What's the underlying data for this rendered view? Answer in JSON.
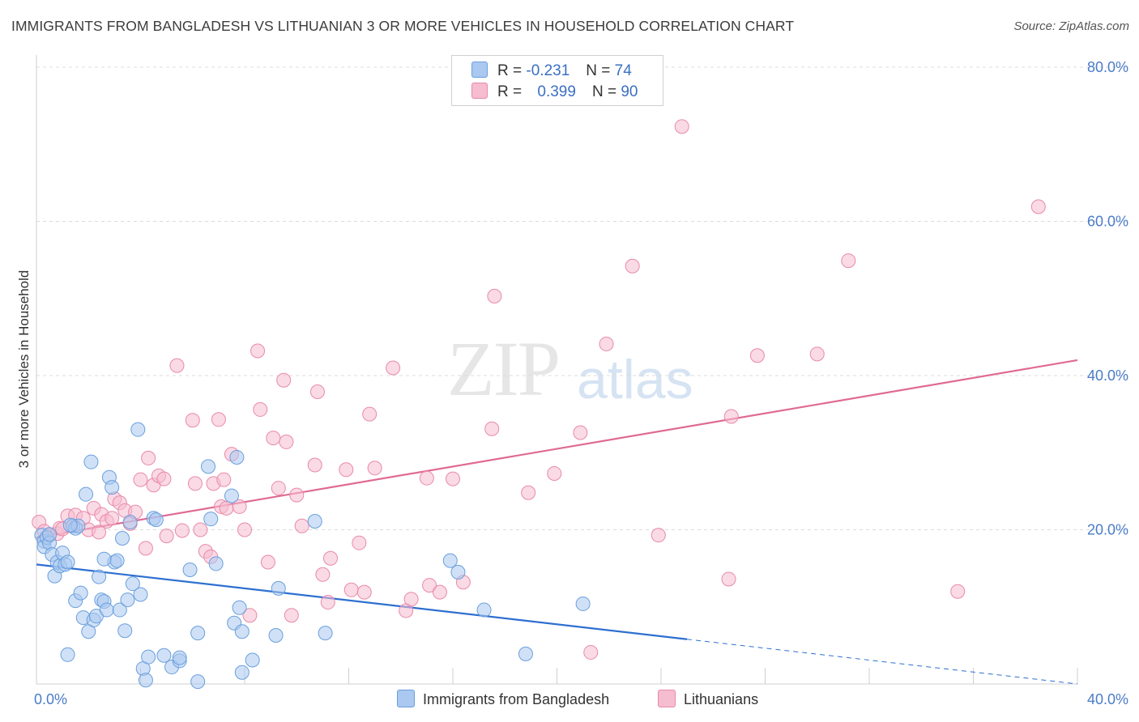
{
  "header": {
    "title": "IMMIGRANTS FROM BANGLADESH VS LITHUANIAN 3 OR MORE VEHICLES IN HOUSEHOLD CORRELATION CHART",
    "source": "Source: ZipAtlas.com"
  },
  "watermark": {
    "zip": "ZIP",
    "atlas": "atlas"
  },
  "legend": {
    "rows": [
      {
        "r_label": "R =",
        "r_value": "-0.231",
        "n_label": "N =",
        "n_value": "74"
      },
      {
        "r_label": "R =",
        "r_value": "0.399",
        "n_label": "N =",
        "n_value": "90"
      }
    ]
  },
  "bottom_legend": {
    "series1": "Immigrants from Bangladesh",
    "series2": "Lithuanians"
  },
  "colors": {
    "blue_fill": "#aac8f0",
    "blue_stroke": "#6a9fdc",
    "blue_line": "#2e6fd0",
    "pink_fill": "#f6bcd0",
    "pink_stroke": "#e88aaa",
    "pink_line": "#e06a94",
    "tick_label": "#4a7cc9"
  },
  "chart_data": {
    "type": "scatter",
    "title": "IMMIGRANTS FROM BANGLADESH VS LITHUANIAN 3 OR MORE VEHICLES IN HOUSEHOLD CORRELATION CHART",
    "xlabel": "",
    "ylabel": "3 or more Vehicles in Household",
    "xlim": [
      0,
      40
    ],
    "ylim": [
      0,
      80
    ],
    "x_tick_labels": [
      "0.0%",
      "40.0%"
    ],
    "y_ticks": [
      20,
      40,
      60,
      80
    ],
    "y_tick_labels": [
      "20.0%",
      "40.0%",
      "60.0%",
      "80.0%"
    ],
    "grid": true,
    "legend_position": "top-center",
    "series": [
      {
        "name": "Immigrants from Bangladesh",
        "R": -0.231,
        "N": 74,
        "trend": {
          "x": [
            0,
            25
          ],
          "y": [
            15.5,
            5.8
          ]
        },
        "trend_dashed": {
          "x": [
            25,
            40
          ],
          "y": [
            5.8,
            0
          ]
        },
        "points": [
          [
            0.2,
            19.3
          ],
          [
            0.3,
            18.5
          ],
          [
            0.3,
            17.8
          ],
          [
            0.4,
            19.0
          ],
          [
            0.5,
            18.3
          ],
          [
            0.6,
            16.8
          ],
          [
            0.7,
            14.0
          ],
          [
            0.8,
            15.8
          ],
          [
            0.9,
            15.3
          ],
          [
            1.0,
            17.0
          ],
          [
            1.1,
            15.5
          ],
          [
            1.2,
            15.8
          ],
          [
            1.2,
            3.8
          ],
          [
            1.4,
            20.5
          ],
          [
            1.5,
            20.2
          ],
          [
            1.5,
            10.8
          ],
          [
            1.6,
            20.5
          ],
          [
            1.7,
            11.8
          ],
          [
            1.8,
            8.6
          ],
          [
            1.9,
            24.6
          ],
          [
            2.0,
            6.8
          ],
          [
            2.1,
            28.8
          ],
          [
            2.2,
            8.3
          ],
          [
            2.3,
            8.8
          ],
          [
            2.4,
            13.9
          ],
          [
            2.5,
            10.9
          ],
          [
            2.6,
            10.7
          ],
          [
            2.7,
            9.6
          ],
          [
            2.8,
            26.8
          ],
          [
            2.9,
            25.5
          ],
          [
            3.0,
            15.8
          ],
          [
            3.1,
            16.0
          ],
          [
            3.2,
            9.6
          ],
          [
            3.3,
            18.9
          ],
          [
            3.4,
            6.9
          ],
          [
            3.5,
            10.9
          ],
          [
            3.6,
            21.0
          ],
          [
            3.7,
            13.0
          ],
          [
            3.9,
            33.0
          ],
          [
            4.0,
            11.6
          ],
          [
            4.1,
            2.0
          ],
          [
            4.2,
            0.5
          ],
          [
            4.3,
            3.5
          ],
          [
            4.5,
            21.5
          ],
          [
            4.6,
            21.3
          ],
          [
            4.9,
            3.7
          ],
          [
            5.2,
            2.2
          ],
          [
            5.5,
            3.0
          ],
          [
            5.5,
            3.4
          ],
          [
            5.9,
            14.8
          ],
          [
            6.2,
            6.6
          ],
          [
            6.2,
            0.3
          ],
          [
            6.6,
            28.2
          ],
          [
            6.7,
            21.4
          ],
          [
            6.9,
            15.6
          ],
          [
            7.5,
            24.4
          ],
          [
            7.7,
            29.4
          ],
          [
            7.6,
            7.9
          ],
          [
            7.8,
            9.9
          ],
          [
            7.9,
            6.8
          ],
          [
            7.9,
            1.5
          ],
          [
            8.3,
            3.1
          ],
          [
            9.2,
            6.3
          ],
          [
            9.3,
            12.4
          ],
          [
            10.7,
            21.1
          ],
          [
            11.1,
            6.6
          ],
          [
            15.9,
            16.0
          ],
          [
            16.2,
            14.5
          ],
          [
            17.2,
            9.6
          ],
          [
            18.8,
            3.9
          ],
          [
            21.0,
            10.4
          ],
          [
            1.3,
            20.6
          ],
          [
            2.6,
            16.2
          ],
          [
            0.5,
            19.4
          ]
        ]
      },
      {
        "name": "Lithuanians",
        "R": 0.399,
        "N": 90,
        "trend": {
          "x": [
            0,
            40
          ],
          "y": [
            19.0,
            42.0
          ]
        },
        "points": [
          [
            0.1,
            21.0
          ],
          [
            0.3,
            19.8
          ],
          [
            0.5,
            19.3
          ],
          [
            0.8,
            19.5
          ],
          [
            0.9,
            20.2
          ],
          [
            1.0,
            20.1
          ],
          [
            1.2,
            21.8
          ],
          [
            1.4,
            20.5
          ],
          [
            1.5,
            21.9
          ],
          [
            1.8,
            21.5
          ],
          [
            2.0,
            20.0
          ],
          [
            2.2,
            22.8
          ],
          [
            2.4,
            19.7
          ],
          [
            2.5,
            22.0
          ],
          [
            2.7,
            21.1
          ],
          [
            2.9,
            21.5
          ],
          [
            3.0,
            24.0
          ],
          [
            3.2,
            23.5
          ],
          [
            3.4,
            22.5
          ],
          [
            3.6,
            20.8
          ],
          [
            3.8,
            22.3
          ],
          [
            4.0,
            26.5
          ],
          [
            4.2,
            17.6
          ],
          [
            4.3,
            29.3
          ],
          [
            4.5,
            25.8
          ],
          [
            4.7,
            27.0
          ],
          [
            4.9,
            26.6
          ],
          [
            5.0,
            19.2
          ],
          [
            5.4,
            41.3
          ],
          [
            5.6,
            19.9
          ],
          [
            6.0,
            34.2
          ],
          [
            6.1,
            26.0
          ],
          [
            6.3,
            20.0
          ],
          [
            6.5,
            17.2
          ],
          [
            6.7,
            16.5
          ],
          [
            6.8,
            26.0
          ],
          [
            7.0,
            34.3
          ],
          [
            7.1,
            23.0
          ],
          [
            7.2,
            26.5
          ],
          [
            7.3,
            22.8
          ],
          [
            7.5,
            29.8
          ],
          [
            7.8,
            23.0
          ],
          [
            8.0,
            20.0
          ],
          [
            8.2,
            8.9
          ],
          [
            8.5,
            43.2
          ],
          [
            8.6,
            35.6
          ],
          [
            8.9,
            15.8
          ],
          [
            9.1,
            31.9
          ],
          [
            9.3,
            25.4
          ],
          [
            9.5,
            39.4
          ],
          [
            9.6,
            31.4
          ],
          [
            9.8,
            8.9
          ],
          [
            10.0,
            24.5
          ],
          [
            10.2,
            20.5
          ],
          [
            10.7,
            28.4
          ],
          [
            10.8,
            37.9
          ],
          [
            11.0,
            14.2
          ],
          [
            11.2,
            10.6
          ],
          [
            11.3,
            16.3
          ],
          [
            11.9,
            27.8
          ],
          [
            12.1,
            12.2
          ],
          [
            12.4,
            18.3
          ],
          [
            12.6,
            11.9
          ],
          [
            12.8,
            35.0
          ],
          [
            13.0,
            28.0
          ],
          [
            13.7,
            41.0
          ],
          [
            14.2,
            9.5
          ],
          [
            14.4,
            11.0
          ],
          [
            15.0,
            26.7
          ],
          [
            15.1,
            12.8
          ],
          [
            15.5,
            11.9
          ],
          [
            16.0,
            26.6
          ],
          [
            16.4,
            13.2
          ],
          [
            17.5,
            33.1
          ],
          [
            17.6,
            50.3
          ],
          [
            18.9,
            24.8
          ],
          [
            19.9,
            27.3
          ],
          [
            20.9,
            32.6
          ],
          [
            21.3,
            4.1
          ],
          [
            21.9,
            44.1
          ],
          [
            22.9,
            54.2
          ],
          [
            23.9,
            19.3
          ],
          [
            24.8,
            72.3
          ],
          [
            26.6,
            13.6
          ],
          [
            26.7,
            34.7
          ],
          [
            27.7,
            42.6
          ],
          [
            30.0,
            42.8
          ],
          [
            31.2,
            54.9
          ],
          [
            35.4,
            12.0
          ],
          [
            38.5,
            61.9
          ]
        ]
      }
    ]
  }
}
